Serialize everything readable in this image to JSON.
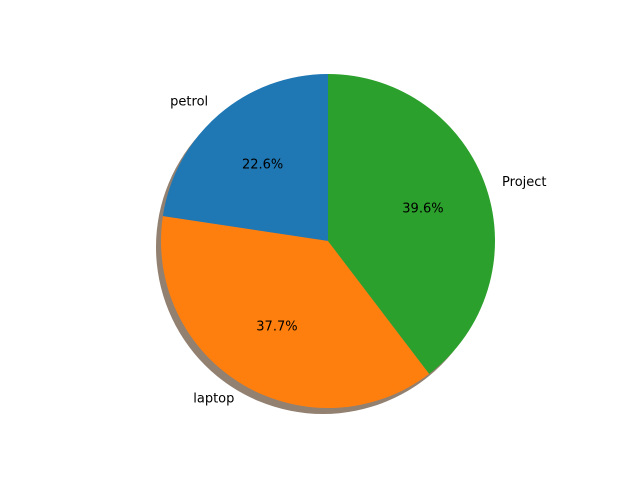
{
  "chart_data": {
    "type": "pie",
    "title": "",
    "categories": [
      "petrol",
      "laptop",
      "Project"
    ],
    "values": [
      22.6,
      37.7,
      39.6
    ],
    "percent_labels": [
      "22.6%",
      "37.7%",
      "39.6%"
    ],
    "colors": [
      "#1f77b4",
      "#ff7f0e",
      "#2ca02c"
    ],
    "start_angle_deg": 90,
    "direction": "counterclockwise",
    "shadow": true,
    "legend": "none"
  }
}
